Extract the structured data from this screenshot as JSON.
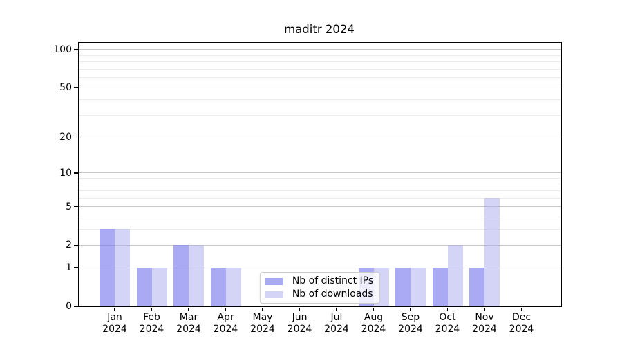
{
  "chart_data": {
    "type": "bar",
    "title": "maditr 2024",
    "categories": [
      "Jan",
      "Feb",
      "Mar",
      "Apr",
      "May",
      "Jun",
      "Jul",
      "Aug",
      "Sep",
      "Oct",
      "Nov",
      "Dec"
    ],
    "year_label": "2024",
    "series": [
      {
        "name": "Nb of distinct IPs",
        "color": "#a9a9f2",
        "color_rgba": "rgba(125,125,238,0.65)",
        "values": [
          3,
          1,
          2,
          1,
          0,
          0,
          0,
          1,
          1,
          1,
          1,
          0
        ]
      },
      {
        "name": "Nb of downloads",
        "color": "#d6d6f5",
        "color_rgba": "rgba(170,170,238,0.5)",
        "values": [
          3,
          1,
          2,
          1,
          0,
          0,
          0,
          1,
          1,
          2,
          6,
          0
        ]
      }
    ],
    "y_axis": {
      "scale": "log1p",
      "ticks": [
        0,
        1,
        2,
        5,
        10,
        20,
        50,
        100
      ],
      "minor_ticks": [
        3,
        4,
        6,
        7,
        8,
        9,
        30,
        40,
        60,
        70,
        80,
        90
      ],
      "range_max": 113
    },
    "x_axis": {
      "label": ""
    },
    "legend_position": "lower center",
    "grid": true
  }
}
